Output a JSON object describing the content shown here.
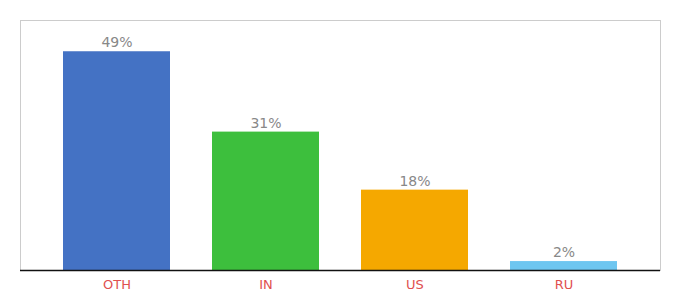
{
  "chart_data": {
    "type": "bar",
    "categories": [
      "OTH",
      "IN",
      "US",
      "RU"
    ],
    "values": [
      49,
      31,
      18,
      2
    ],
    "value_labels": [
      "49%",
      "31%",
      "18%",
      "2%"
    ],
    "colors": [
      "#4472C4",
      "#3DBF3D",
      "#F5A800",
      "#6EC6F0"
    ],
    "ylim": [
      0,
      56
    ],
    "data_labels": true,
    "tick_labels": "x",
    "grid": false
  }
}
